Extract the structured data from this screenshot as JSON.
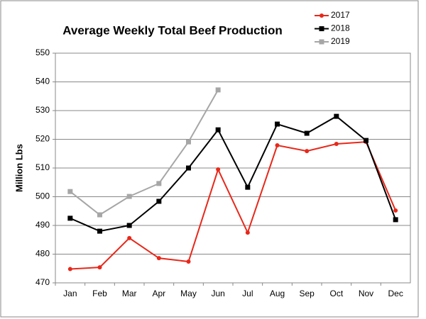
{
  "chart_data": {
    "type": "line",
    "title": "Average Weekly Total Beef Production",
    "y_label": "Million Lbs",
    "categories": [
      "Jan",
      "Feb",
      "Mar",
      "Apr",
      "May",
      "Jun",
      "Jul",
      "Aug",
      "Sep",
      "Oct",
      "Nov",
      "Dec"
    ],
    "series": [
      {
        "name": "2017",
        "color": "#e8281a",
        "marker": "circle",
        "values": [
          474.8,
          475.4,
          485.6,
          478.6,
          477.4,
          509.5,
          487.5,
          517.9,
          515.9,
          518.4,
          519.1,
          495.2
        ]
      },
      {
        "name": "2018",
        "color": "#000000",
        "marker": "square",
        "values": [
          492.5,
          488.0,
          490.0,
          498.4,
          510.0,
          523.3,
          503.3,
          525.3,
          522.1,
          528.0,
          519.6,
          492.0
        ]
      },
      {
        "name": "2019",
        "color": "#a6a6a6",
        "marker": "square",
        "values": [
          501.8,
          493.7,
          500.1,
          504.6,
          519.1,
          537.2,
          null,
          null,
          null,
          null,
          null,
          null
        ]
      }
    ],
    "ylim": [
      470,
      550
    ],
    "yticks": [
      470,
      480,
      490,
      500,
      510,
      520,
      530,
      540,
      550
    ],
    "grid": true
  }
}
